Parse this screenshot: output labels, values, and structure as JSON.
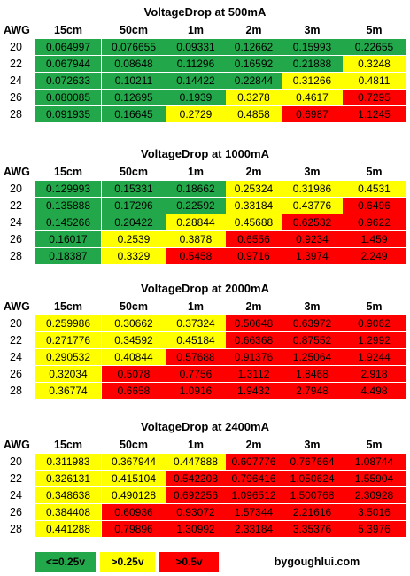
{
  "tables": [
    {
      "title": "Voltage Drop at 500mA",
      "awg_label": "AWG",
      "columns": [
        "15cm",
        "50cm",
        "1m",
        "2m",
        "3m",
        "5m"
      ],
      "rows": [
        {
          "awg": "20",
          "values": [
            "0.064997",
            "0.07665 5",
            "0.09331",
            "0.12662",
            "0.15993",
            "0.22655"
          ],
          "colors": [
            "g",
            "g",
            "g",
            "g",
            "g",
            "g"
          ]
        },
        {
          "awg": "22",
          "values": [
            "0.067944",
            "0.08648",
            "0.11296",
            "0.16592",
            "0.21888",
            "0.3248"
          ],
          "colors": [
            "g",
            "g",
            "g",
            "g",
            "g",
            "y"
          ]
        },
        {
          "awg": "24",
          "values": [
            "0.072633",
            "0.10211",
            "0.14422",
            "0.22844",
            "0.31266",
            "0.4811"
          ],
          "colors": [
            "g",
            "g",
            "g",
            "g",
            "y",
            "y"
          ]
        },
        {
          "awg": "26",
          "values": [
            "0.080085",
            "0.12695",
            "0.1939",
            "0.3278",
            "0.4617",
            "0.7295"
          ],
          "colors": [
            "g",
            "g",
            "g",
            "y",
            "y",
            "r"
          ]
        },
        {
          "awg": "28",
          "values": [
            "0.091935",
            "0.16645",
            "0.2729",
            "0.4858",
            "0.6987",
            "1.1245"
          ],
          "colors": [
            "g",
            "g",
            "y",
            "y",
            "r",
            "r"
          ]
        }
      ]
    },
    {
      "title": "Voltage Drop at 1000mA",
      "awg_label": "AWG",
      "columns": [
        "15cm",
        "50cm",
        "1m",
        "2m",
        "3m",
        "5m"
      ],
      "rows": [
        {
          "awg": "20",
          "values": [
            "0.129993",
            "0.15331",
            "0.18662",
            "0.25324",
            "0.31986",
            "0.4531"
          ],
          "colors": [
            "g",
            "g",
            "g",
            "y",
            "y",
            "y"
          ]
        },
        {
          "awg": "22",
          "values": [
            "0.135888",
            "0.17296",
            "0.22592",
            "0.33184",
            "0.43776",
            "0.6496"
          ],
          "colors": [
            "g",
            "g",
            "g",
            "y",
            "y",
            "r"
          ]
        },
        {
          "awg": "24",
          "values": [
            "0.145266",
            "0.20422",
            "0.28844",
            "0.45688",
            "0.62532",
            "0.9622"
          ],
          "colors": [
            "g",
            "g",
            "y",
            "y",
            "r",
            "r"
          ]
        },
        {
          "awg": "26",
          "values": [
            "0.16017",
            "0.2539",
            "0.3878",
            "0.6556",
            "0.9234",
            "1.459"
          ],
          "colors": [
            "g",
            "y",
            "y",
            "r",
            "r",
            "r"
          ]
        },
        {
          "awg": "28",
          "values": [
            "0.18387",
            "0.3329",
            "0.5458",
            "0.9716",
            "1.3974",
            "2.249"
          ],
          "colors": [
            "g",
            "y",
            "r",
            "r",
            "r",
            "r"
          ]
        }
      ]
    },
    {
      "title": "Voltage Drop at 2000mA",
      "awg_label": "AWG",
      "columns": [
        "15cm",
        "50cm",
        "1m",
        "2m",
        "3m",
        "5m"
      ],
      "rows": [
        {
          "awg": "20",
          "values": [
            "0.259986",
            "0.30662",
            "0.37324",
            "0.50648",
            "0.63972",
            "0.9062"
          ],
          "colors": [
            "y",
            "y",
            "y",
            "r",
            "r",
            "r"
          ]
        },
        {
          "awg": "22",
          "values": [
            "0.271776",
            "0.34592",
            "0.45184",
            "0.66368",
            "0.87552",
            "1.2992"
          ],
          "colors": [
            "y",
            "y",
            "y",
            "r",
            "r",
            "r"
          ]
        },
        {
          "awg": "24",
          "values": [
            "0.290532",
            "0.40844",
            "0.57688",
            "0.91376",
            "1.25064",
            "1.9244"
          ],
          "colors": [
            "y",
            "y",
            "r",
            "r",
            "r",
            "r"
          ]
        },
        {
          "awg": "26",
          "values": [
            "0.32034",
            "0.5078",
            "0.7756",
            "1.3112",
            "1.8468",
            "2.918"
          ],
          "colors": [
            "y",
            "r",
            "r",
            "r",
            "r",
            "r"
          ]
        },
        {
          "awg": "28",
          "values": [
            "0.36774",
            "0.6658",
            "1.0916",
            "1.9432",
            "2.7948",
            "4.498"
          ],
          "colors": [
            "y",
            "r",
            "r",
            "r",
            "r",
            "r"
          ]
        }
      ]
    },
    {
      "title": "Voltage Drop at 2400mA",
      "awg_label": "AWG",
      "columns": [
        "15cm",
        "50cm",
        "1m",
        "2m",
        "3m",
        "5m"
      ],
      "rows": [
        {
          "awg": "20",
          "values": [
            "0.311983",
            "0.367944",
            "0.447888",
            "0.607776",
            "0.767664",
            "1.08744"
          ],
          "colors": [
            "y",
            "y",
            "y",
            "r",
            "r",
            "r"
          ]
        },
        {
          "awg": "22",
          "values": [
            "0.326131",
            "0.415104",
            "0.542208",
            "0.796416",
            "1.050624",
            "1.55904"
          ],
          "colors": [
            "y",
            "y",
            "r",
            "r",
            "r",
            "r"
          ]
        },
        {
          "awg": "24",
          "values": [
            "0.348638",
            "0.490128",
            "0.692256",
            "1.096512",
            "1.500768",
            "2.30928"
          ],
          "colors": [
            "y",
            "y",
            "r",
            "r",
            "r",
            "r"
          ]
        },
        {
          "awg": "26",
          "values": [
            "0.384408",
            "0.60936",
            "0.93072",
            "1.57344",
            "2.21616",
            "3.5016"
          ],
          "colors": [
            "y",
            "r",
            "r",
            "r",
            "r",
            "r"
          ]
        },
        {
          "awg": "28",
          "values": [
            "0.441288",
            "0.79896",
            "1.30992",
            "2.33184",
            "3.35376",
            "5.3976"
          ],
          "colors": [
            "y",
            "r",
            "r",
            "r",
            "r",
            "r"
          ]
        }
      ]
    }
  ],
  "legend": [
    {
      "label": "<=0.25v",
      "color": "g"
    },
    {
      "label": ">0.25v",
      "color": "y"
    },
    {
      "label": ">0.5v",
      "color": "r"
    }
  ],
  "credit": "by goughlui.com",
  "palette": {
    "g": "#22a84a",
    "y": "#ffff00",
    "r": "#ff0000"
  }
}
